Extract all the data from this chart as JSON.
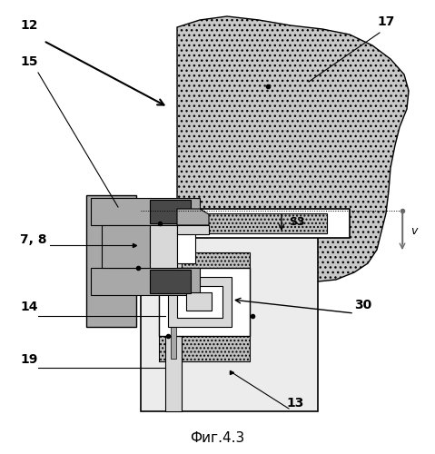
{
  "title": "Фиг.4.3",
  "bg_color": "#ffffff",
  "c_white": "#ffffff",
  "c_ltgray": "#d8d8d8",
  "c_gray": "#a8a8a8",
  "c_dgray": "#686868",
  "c_vdgray": "#484848",
  "c_blk": "#000000",
  "c_hatch": "#c0c0c0",
  "c_rail": "#ececec",
  "c_rock": "#c8c8c8"
}
